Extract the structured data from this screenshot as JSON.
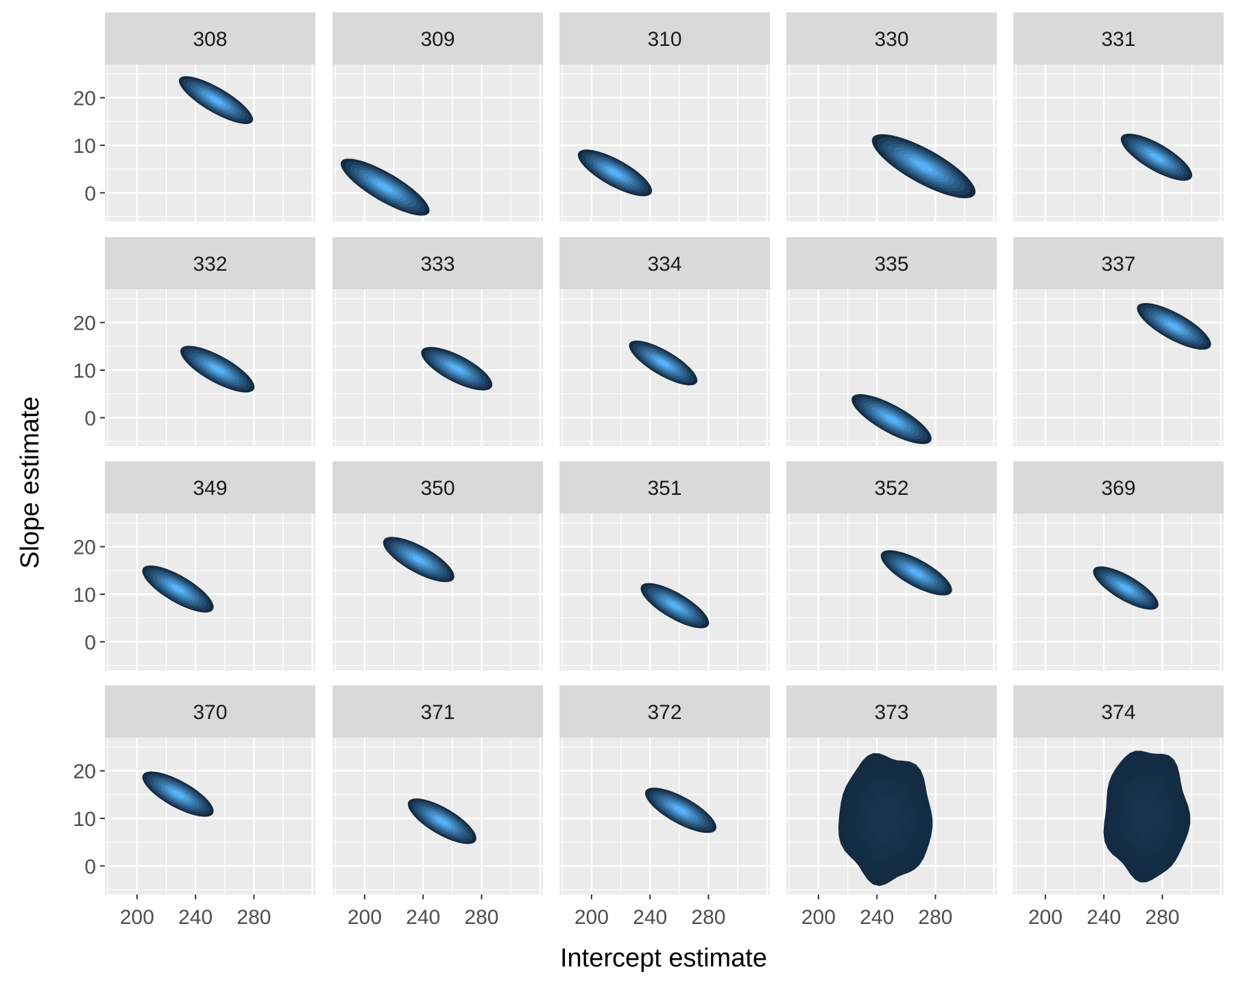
{
  "chart_data": {
    "type": "contour-density-facets",
    "xlabel": "Intercept estimate",
    "ylabel": "Slope estimate",
    "xlim": [
      178,
      322
    ],
    "ylim": [
      -6,
      27
    ],
    "x_ticks": [
      200,
      240,
      280
    ],
    "y_ticks": [
      0,
      10,
      20
    ],
    "grid": true,
    "facet_columns": 5,
    "colors": {
      "panel_bg": "#ebebeb",
      "strip_bg": "#d9d9d9",
      "grid": "#ffffff",
      "fill_low": "#132b43",
      "fill_high": "#56b1f7"
    },
    "facets": [
      {
        "label": "308",
        "center": [
          254,
          19.5
        ],
        "slope": -0.18,
        "half_length": 25,
        "half_width": 2.6
      },
      {
        "label": "309",
        "center": [
          214,
          1.2
        ],
        "slope": -0.18,
        "half_length": 30,
        "half_width": 3.0
      },
      {
        "label": "310",
        "center": [
          216,
          4.2
        ],
        "slope": -0.17,
        "half_length": 25,
        "half_width": 2.8
      },
      {
        "label": "330",
        "center": [
          272,
          5.6
        ],
        "slope": -0.17,
        "half_length": 35,
        "half_width": 3.6
      },
      {
        "label": "331",
        "center": [
          276,
          7.5
        ],
        "slope": -0.18,
        "half_length": 24,
        "half_width": 2.8
      },
      {
        "label": "332",
        "center": [
          255,
          10.2
        ],
        "slope": -0.17,
        "half_length": 25,
        "half_width": 2.8
      },
      {
        "label": "333",
        "center": [
          263,
          10.3
        ],
        "slope": -0.16,
        "half_length": 24,
        "half_width": 2.8
      },
      {
        "label": "334",
        "center": [
          249,
          11.5
        ],
        "slope": -0.18,
        "half_length": 23,
        "half_width": 2.6
      },
      {
        "label": "335",
        "center": [
          250,
          -0.3
        ],
        "slope": -0.17,
        "half_length": 27,
        "half_width": 2.9
      },
      {
        "label": "337",
        "center": [
          288,
          19.2
        ],
        "slope": -0.17,
        "half_length": 25,
        "half_width": 2.8
      },
      {
        "label": "349",
        "center": [
          228,
          11.1
        ],
        "slope": -0.18,
        "half_length": 24,
        "half_width": 2.8
      },
      {
        "label": "350",
        "center": [
          237,
          17.3
        ],
        "slope": -0.17,
        "half_length": 24,
        "half_width": 2.8
      },
      {
        "label": "351",
        "center": [
          257,
          7.6
        ],
        "slope": -0.18,
        "half_length": 23,
        "half_width": 2.7
      },
      {
        "label": "352",
        "center": [
          267,
          14.5
        ],
        "slope": -0.17,
        "half_length": 24,
        "half_width": 2.8
      },
      {
        "label": "369",
        "center": [
          255,
          11.3
        ],
        "slope": -0.18,
        "half_length": 22,
        "half_width": 2.6
      },
      {
        "label": "370",
        "center": [
          228,
          15.1
        ],
        "slope": -0.17,
        "half_length": 24,
        "half_width": 2.8
      },
      {
        "label": "371",
        "center": [
          253,
          9.4
        ],
        "slope": -0.18,
        "half_length": 23,
        "half_width": 2.8
      },
      {
        "label": "372",
        "center": [
          261,
          11.7
        ],
        "slope": -0.17,
        "half_length": 24,
        "half_width": 2.8
      },
      {
        "label": "373",
        "center": [
          246,
          10.0
        ],
        "slope": 0,
        "half_length": 32,
        "half_width": 13.5,
        "blob": true
      },
      {
        "label": "374",
        "center": [
          269,
          10.8
        ],
        "slope": 0,
        "half_length": 29,
        "half_width": 13.7,
        "blob": true
      }
    ]
  }
}
